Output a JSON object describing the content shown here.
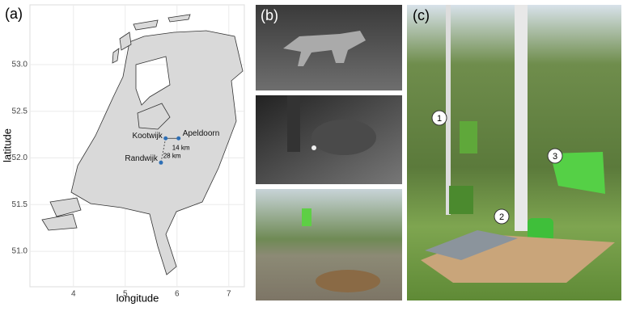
{
  "panel_a": {
    "label": "(a)",
    "xlabel": "longitude",
    "ylabel": "latitude",
    "xlim": [
      3.16,
      7.3
    ],
    "ylim": [
      50.62,
      53.64
    ],
    "xticks": [
      4,
      5,
      6,
      7
    ],
    "yticks": [
      {
        "value": 51.0,
        "label": "51.0"
      },
      {
        "value": 51.5,
        "label": "51.5"
      },
      {
        "value": 52.0,
        "label": "52.0"
      },
      {
        "value": 52.5,
        "label": "52.5"
      },
      {
        "value": 53.0,
        "label": "53.0"
      }
    ],
    "places": [
      {
        "name": "Kootwijk",
        "lon": 5.78,
        "lat": 52.21
      },
      {
        "name": "Apeldoorn",
        "lon": 6.03,
        "lat": 52.21
      },
      {
        "name": "Randwijk",
        "lon": 5.69,
        "lat": 51.95
      }
    ],
    "distances": [
      "14 km",
      "28 km"
    ]
  },
  "panel_b": {
    "label": "(b)"
  },
  "panel_c": {
    "label": "(c)",
    "markers": [
      "1",
      "2",
      "3"
    ]
  }
}
